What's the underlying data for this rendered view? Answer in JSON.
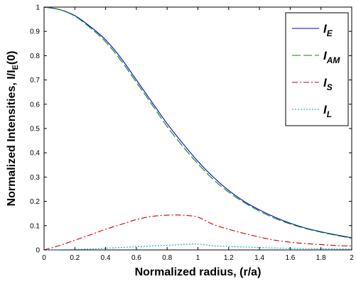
{
  "chart_data": {
    "type": "line",
    "xlabel": "Normalized radius, (r/a)",
    "ylabel": "Normalized Intensities, I/I_E(0)",
    "xlim": [
      0,
      2
    ],
    "ylim": [
      0,
      1
    ],
    "x_ticks": [
      "0",
      "0.2",
      "0.4",
      "0.6",
      "0.8",
      "1",
      "1.2",
      "1.4",
      "1.6",
      "1.8",
      "2"
    ],
    "y_ticks": [
      "0",
      "0.1",
      "0.2",
      "0.3",
      "0.4",
      "0.5",
      "0.6",
      "0.7",
      "0.8",
      "0.9",
      "1"
    ],
    "legend_position": "top-right",
    "grid": false,
    "x": [
      0,
      0.1,
      0.2,
      0.3,
      0.4,
      0.5,
      0.6,
      0.7,
      0.8,
      0.9,
      1.0,
      1.1,
      1.2,
      1.3,
      1.4,
      1.5,
      1.6,
      1.7,
      1.8,
      1.9,
      2.0
    ],
    "series": [
      {
        "name": "I_E",
        "legend_main": "I",
        "legend_sub": "E",
        "color": "#0000cc",
        "dash": "solid",
        "values": [
          1.0,
          0.99,
          0.965,
          0.92,
          0.865,
          0.79,
          0.7,
          0.61,
          0.52,
          0.44,
          0.365,
          0.3,
          0.245,
          0.2,
          0.165,
          0.135,
          0.11,
          0.09,
          0.075,
          0.062,
          0.05
        ]
      },
      {
        "name": "I_AM",
        "legend_main": "I",
        "legend_sub": "AM",
        "color": "#008800",
        "dash": "long-dash",
        "values": [
          1.0,
          0.99,
          0.963,
          0.915,
          0.857,
          0.78,
          0.69,
          0.6,
          0.508,
          0.428,
          0.355,
          0.29,
          0.238,
          0.195,
          0.16,
          0.13,
          0.107,
          0.088,
          0.073,
          0.06,
          0.048
        ]
      },
      {
        "name": "I_S",
        "legend_main": "I",
        "legend_sub": "S",
        "color": "#cc0000",
        "dash": "dash-dot",
        "values": [
          0.0,
          0.018,
          0.04,
          0.062,
          0.085,
          0.105,
          0.125,
          0.138,
          0.143,
          0.143,
          0.135,
          0.105,
          0.085,
          0.068,
          0.053,
          0.04,
          0.032,
          0.026,
          0.022,
          0.018,
          0.016
        ]
      },
      {
        "name": "I_L",
        "legend_main": "I",
        "legend_sub": "L",
        "color": "#00aacc",
        "dash": "dotted",
        "values": [
          0.0,
          0.001,
          0.002,
          0.004,
          0.007,
          0.01,
          0.013,
          0.016,
          0.019,
          0.022,
          0.024,
          0.017,
          0.014,
          0.012,
          0.01,
          0.008,
          0.007,
          0.006,
          0.005,
          0.004,
          0.004
        ]
      }
    ]
  }
}
